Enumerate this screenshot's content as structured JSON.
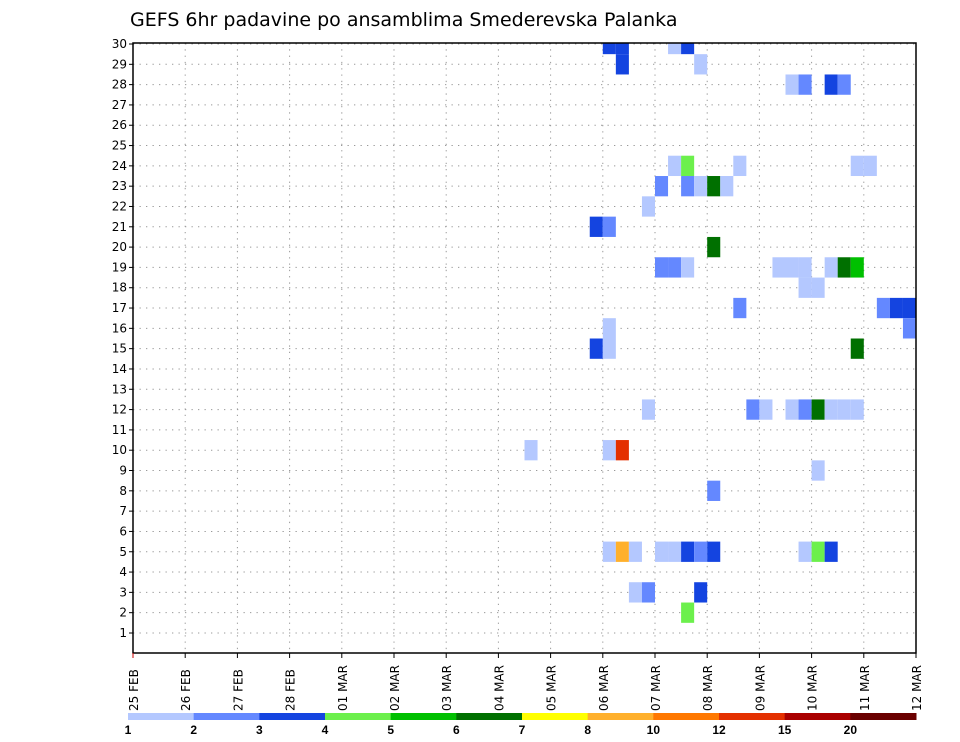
{
  "chart_data": {
    "type": "heatmap",
    "title": "GEFS 6hr padavine po ansamblima Smederevska Palanka",
    "xlabel": "",
    "ylabel": "",
    "x_tick_labels": [
      "25 FEB",
      "26 FEB",
      "27 FEB",
      "28 FEB",
      "01 MAR",
      "02 MAR",
      "03 MAR",
      "04 MAR",
      "05 MAR",
      "06 MAR",
      "07 MAR",
      "08 MAR",
      "09 MAR",
      "10 MAR",
      "11 MAR",
      "12 MAR"
    ],
    "x_step_hours": 6,
    "x_steps_total": 60,
    "y_members": [
      1,
      2,
      3,
      4,
      5,
      6,
      7,
      8,
      9,
      10,
      11,
      12,
      13,
      14,
      15,
      16,
      17,
      18,
      19,
      20,
      21,
      22,
      23,
      24,
      25,
      26,
      27,
      28,
      29,
      30
    ],
    "grid": true,
    "legend": {
      "placement": "bottom",
      "bounds_labels": [
        "1",
        "2",
        "3",
        "4",
        "5",
        "6",
        "7",
        "8",
        "10",
        "12",
        "15",
        "20"
      ],
      "colors": [
        "#b4c8ff",
        "#6488ff",
        "#1444e0",
        "#6cf04c",
        "#00c000",
        "#007000",
        "#ffff00",
        "#ffb02c",
        "#ff7800",
        "#e43000",
        "#aa0000",
        "#6a0000"
      ]
    },
    "cells_format": [
      "step_from_25FEB_00Z",
      "member",
      "color_class"
    ],
    "cells": [
      [
        36,
        30,
        2
      ],
      [
        37,
        30,
        2
      ],
      [
        41,
        30,
        0
      ],
      [
        42,
        30,
        2
      ],
      [
        37,
        29,
        2
      ],
      [
        43,
        29,
        0
      ],
      [
        50,
        28,
        0
      ],
      [
        51,
        28,
        1
      ],
      [
        53,
        28,
        2
      ],
      [
        54,
        28,
        1
      ],
      [
        41,
        24,
        0
      ],
      [
        42,
        24,
        3
      ],
      [
        46,
        24,
        0
      ],
      [
        55,
        24,
        0
      ],
      [
        56,
        24,
        0
      ],
      [
        40,
        23,
        1
      ],
      [
        42,
        23,
        1
      ],
      [
        43,
        23,
        0
      ],
      [
        44,
        23,
        5
      ],
      [
        45,
        23,
        0
      ],
      [
        39,
        22,
        0
      ],
      [
        35,
        21,
        2
      ],
      [
        36,
        21,
        1
      ],
      [
        44,
        20,
        5
      ],
      [
        40,
        19,
        1
      ],
      [
        41,
        19,
        1
      ],
      [
        42,
        19,
        0
      ],
      [
        49,
        19,
        0
      ],
      [
        50,
        19,
        0
      ],
      [
        51,
        19,
        0
      ],
      [
        53,
        19,
        0
      ],
      [
        54,
        19,
        5
      ],
      [
        55,
        19,
        4
      ],
      [
        51,
        18,
        0
      ],
      [
        52,
        18,
        0
      ],
      [
        46,
        17,
        1
      ],
      [
        57,
        17,
        1
      ],
      [
        58,
        17,
        2
      ],
      [
        59,
        17,
        2
      ],
      [
        36,
        16,
        0
      ],
      [
        59,
        16,
        1
      ],
      [
        35,
        15,
        2
      ],
      [
        36,
        15,
        0
      ],
      [
        55,
        15,
        5
      ],
      [
        39,
        12,
        0
      ],
      [
        47,
        12,
        1
      ],
      [
        48,
        12,
        0
      ],
      [
        50,
        12,
        0
      ],
      [
        51,
        12,
        1
      ],
      [
        52,
        12,
        5
      ],
      [
        53,
        12,
        0
      ],
      [
        54,
        12,
        0
      ],
      [
        55,
        12,
        0
      ],
      [
        30,
        10,
        0
      ],
      [
        36,
        10,
        0
      ],
      [
        37,
        10,
        9
      ],
      [
        52,
        9,
        0
      ],
      [
        44,
        8,
        1
      ],
      [
        36,
        5,
        0
      ],
      [
        37,
        5,
        7
      ],
      [
        38,
        5,
        0
      ],
      [
        40,
        5,
        0
      ],
      [
        41,
        5,
        0
      ],
      [
        42,
        5,
        2
      ],
      [
        43,
        5,
        1
      ],
      [
        44,
        5,
        2
      ],
      [
        51,
        5,
        0
      ],
      [
        52,
        5,
        3
      ],
      [
        53,
        5,
        2
      ],
      [
        38,
        3,
        0
      ],
      [
        39,
        3,
        1
      ],
      [
        43,
        3,
        2
      ],
      [
        42,
        2,
        3
      ]
    ]
  }
}
